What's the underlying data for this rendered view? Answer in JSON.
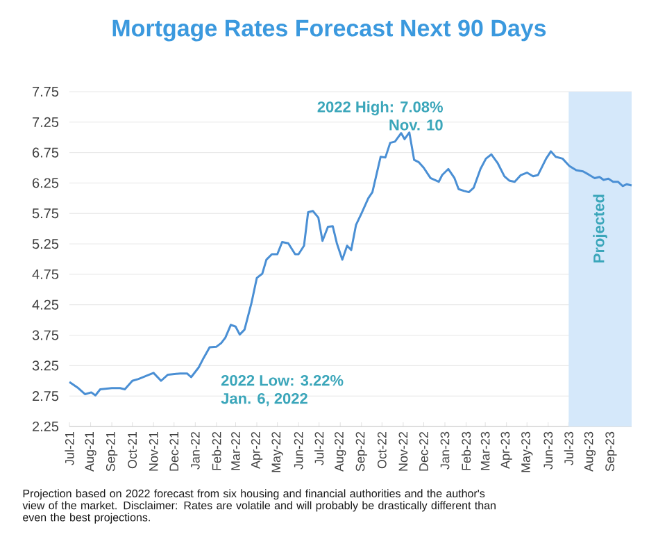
{
  "chart_data": {
    "type": "line",
    "title": "Mortgage Rates Forecast Next 90 Days",
    "x": [
      "2021-07-01",
      "2021-07-14",
      "2021-07-24",
      "2021-08-02",
      "2021-08-08",
      "2021-08-15",
      "2021-09-01",
      "2021-09-13",
      "2021-09-20",
      "2021-10-01",
      "2021-10-10",
      "2021-11-01",
      "2021-11-12",
      "2021-11-22",
      "2021-12-10",
      "2021-12-20",
      "2021-12-26",
      "2022-01-06",
      "2022-01-12",
      "2022-01-22",
      "2022-02-01",
      "2022-02-08",
      "2022-02-14",
      "2022-02-22",
      "2022-03-01",
      "2022-03-07",
      "2022-03-14",
      "2022-03-24",
      "2022-04-01",
      "2022-04-09",
      "2022-04-15",
      "2022-04-23",
      "2022-05-01",
      "2022-05-08",
      "2022-05-17",
      "2022-05-27",
      "2022-06-01",
      "2022-06-09",
      "2022-06-15",
      "2022-06-22",
      "2022-06-30",
      "2022-07-06",
      "2022-07-14",
      "2022-07-21",
      "2022-07-27",
      "2022-08-04",
      "2022-08-11",
      "2022-08-17",
      "2022-08-24",
      "2022-09-01",
      "2022-09-11",
      "2022-09-17",
      "2022-09-29",
      "2022-10-06",
      "2022-10-13",
      "2022-10-20",
      "2022-10-29",
      "2022-11-03",
      "2022-11-10",
      "2022-11-17",
      "2022-11-24",
      "2022-12-01",
      "2022-12-11",
      "2022-12-23",
      "2022-12-28",
      "2023-01-06",
      "2023-01-15",
      "2023-01-21",
      "2023-01-29",
      "2023-02-05",
      "2023-02-12",
      "2023-02-22",
      "2023-03-02",
      "2023-03-10",
      "2023-03-19",
      "2023-03-29",
      "2023-04-05",
      "2023-04-13",
      "2023-04-22",
      "2023-05-01",
      "2023-05-10",
      "2023-05-17",
      "2023-05-29",
      "2023-06-05",
      "2023-06-12",
      "2023-06-22",
      "2023-07-02",
      "2023-07-12",
      "2023-07-22",
      "2023-07-30",
      "2023-08-08",
      "2023-08-15",
      "2023-08-21",
      "2023-08-28",
      "2023-09-04",
      "2023-09-11",
      "2023-09-18",
      "2023-09-24",
      "2023-10-01"
    ],
    "series": [
      {
        "color": "#4a8fd4",
        "values": [
          2.98,
          2.88,
          2.78,
          2.81,
          2.76,
          2.86,
          2.88,
          2.88,
          2.86,
          3.0,
          3.03,
          3.13,
          3.0,
          3.1,
          3.12,
          3.12,
          3.06,
          3.22,
          3.35,
          3.55,
          3.56,
          3.62,
          3.71,
          3.92,
          3.89,
          3.76,
          3.84,
          4.27,
          4.69,
          4.76,
          4.99,
          5.08,
          5.08,
          5.28,
          5.26,
          5.08,
          5.08,
          5.22,
          5.77,
          5.79,
          5.68,
          5.3,
          5.53,
          5.54,
          5.26,
          4.99,
          5.22,
          5.15,
          5.56,
          5.75,
          6.0,
          6.1,
          6.68,
          6.67,
          6.91,
          6.93,
          7.07,
          6.97,
          7.08,
          6.63,
          6.59,
          6.5,
          6.33,
          6.27,
          6.38,
          6.48,
          6.33,
          6.15,
          6.12,
          6.1,
          6.17,
          6.48,
          6.65,
          6.72,
          6.58,
          6.36,
          6.29,
          6.27,
          6.38,
          6.42,
          6.36,
          6.38,
          6.65,
          6.77,
          6.68,
          6.65,
          6.53,
          6.46,
          6.44,
          6.39,
          6.33,
          6.35,
          6.3,
          6.32,
          6.27,
          6.27,
          6.2,
          6.23,
          6.21
        ]
      }
    ],
    "xlim": [
      "2021-07-01",
      "2023-10-01"
    ],
    "xticks": [
      {
        "value": "2021-07-01",
        "label": "Jul-21"
      },
      {
        "value": "2021-08-01",
        "label": "Aug-21"
      },
      {
        "value": "2021-09-01",
        "label": "Sep-21"
      },
      {
        "value": "2021-10-01",
        "label": "Oct-21"
      },
      {
        "value": "2021-11-01",
        "label": "Nov-21"
      },
      {
        "value": "2021-12-01",
        "label": "Dec-21"
      },
      {
        "value": "2022-01-01",
        "label": "Jan-22"
      },
      {
        "value": "2022-02-01",
        "label": "Feb-22"
      },
      {
        "value": "2022-03-01",
        "label": "Mar-22"
      },
      {
        "value": "2022-04-01",
        "label": "Apr-22"
      },
      {
        "value": "2022-05-01",
        "label": "May-22"
      },
      {
        "value": "2022-06-01",
        "label": "Jun-22"
      },
      {
        "value": "2022-07-01",
        "label": "Jul-22"
      },
      {
        "value": "2022-08-01",
        "label": "Aug-22"
      },
      {
        "value": "2022-09-01",
        "label": "Sep-22"
      },
      {
        "value": "2022-10-01",
        "label": "Oct-22"
      },
      {
        "value": "2022-11-01",
        "label": "Nov-22"
      },
      {
        "value": "2022-12-01",
        "label": "Dec-22"
      },
      {
        "value": "2023-01-01",
        "label": "Jan-23"
      },
      {
        "value": "2023-02-01",
        "label": "Feb-23"
      },
      {
        "value": "2023-03-01",
        "label": "Mar-23"
      },
      {
        "value": "2023-04-01",
        "label": "Apr-23"
      },
      {
        "value": "2023-05-01",
        "label": "May-23"
      },
      {
        "value": "2023-06-01",
        "label": "Jun-23"
      },
      {
        "value": "2023-07-01",
        "label": "Jul-23"
      },
      {
        "value": "2023-08-01",
        "label": "Aug-23"
      },
      {
        "value": "2023-09-01",
        "label": "Sep-23"
      }
    ],
    "ylim": [
      2.25,
      7.75
    ],
    "yticks": [
      2.25,
      2.75,
      3.25,
      3.75,
      4.25,
      4.75,
      5.25,
      5.75,
      6.25,
      6.75,
      7.25,
      7.75
    ],
    "grid": "y",
    "bands": [
      {
        "axis": "x",
        "from": "2023-07-01",
        "to": "2023-10-01",
        "label": "Projected",
        "color": "#d5e8fa"
      }
    ],
    "annotations": [
      {
        "text": "2022 High: 7.08%",
        "x": "2022-11-10",
        "y": 7.08
      },
      {
        "text": "Nov. 10",
        "x": "2022-11-10",
        "y": 7.08
      },
      {
        "text": "2022 Low: 3.22%",
        "x": "2022-01-06",
        "y": 3.22
      },
      {
        "text": "Jan. 6, 2022",
        "x": "2022-01-06",
        "y": 3.22
      },
      "Projection based on 2022 forecast from six housing and financial authorities and the author's view of the market. Disclaimer: Rates are volatile and will probably be drastically different than even the best projections."
    ]
  }
}
